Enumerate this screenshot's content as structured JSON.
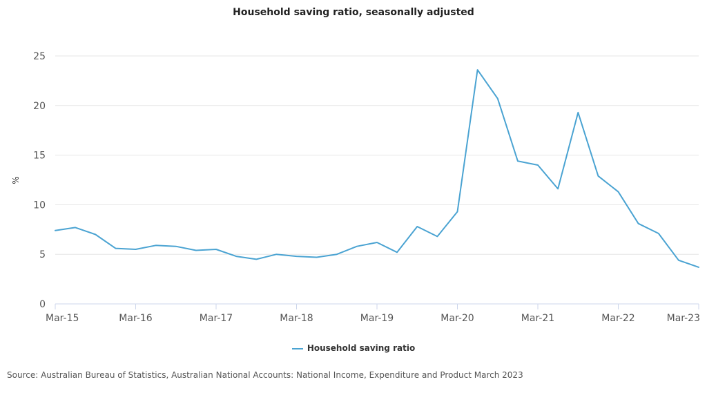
{
  "chart_data": {
    "type": "line",
    "title": "Household saving ratio, seasonally adjusted",
    "xlabel": "",
    "ylabel": "%",
    "ylim": [
      0,
      25
    ],
    "y_ticks": [
      0,
      5,
      10,
      15,
      20,
      25
    ],
    "x_ticks": [
      "Mar-15",
      "Mar-16",
      "Mar-17",
      "Mar-18",
      "Mar-19",
      "Mar-20",
      "Mar-21",
      "Mar-22",
      "Mar-23"
    ],
    "categories": [
      "Mar-15",
      "Jun-15",
      "Sep-15",
      "Dec-15",
      "Mar-16",
      "Jun-16",
      "Sep-16",
      "Dec-16",
      "Mar-17",
      "Jun-17",
      "Sep-17",
      "Dec-17",
      "Mar-18",
      "Jun-18",
      "Sep-18",
      "Dec-18",
      "Mar-19",
      "Jun-19",
      "Sep-19",
      "Dec-19",
      "Mar-20",
      "Jun-20",
      "Sep-20",
      "Dec-20",
      "Mar-21",
      "Jun-21",
      "Sep-21",
      "Dec-21",
      "Mar-22",
      "Jun-22",
      "Sep-22",
      "Dec-22",
      "Mar-23"
    ],
    "series": [
      {
        "name": "Household saving ratio",
        "color": "#4aa3d2",
        "values": [
          7.4,
          7.7,
          7.0,
          5.6,
          5.5,
          5.9,
          5.8,
          5.4,
          5.5,
          4.8,
          4.5,
          5.0,
          4.8,
          4.7,
          5.0,
          5.8,
          6.2,
          5.2,
          7.8,
          6.8,
          9.3,
          23.6,
          20.7,
          14.4,
          14.0,
          11.6,
          19.3,
          12.9,
          11.3,
          8.1,
          7.1,
          4.4,
          3.7
        ]
      }
    ],
    "grid": true,
    "legend_position": "bottom-center"
  },
  "source": "Source: Australian Bureau of Statistics, Australian National Accounts: National Income, Expenditure and Product March 2023"
}
